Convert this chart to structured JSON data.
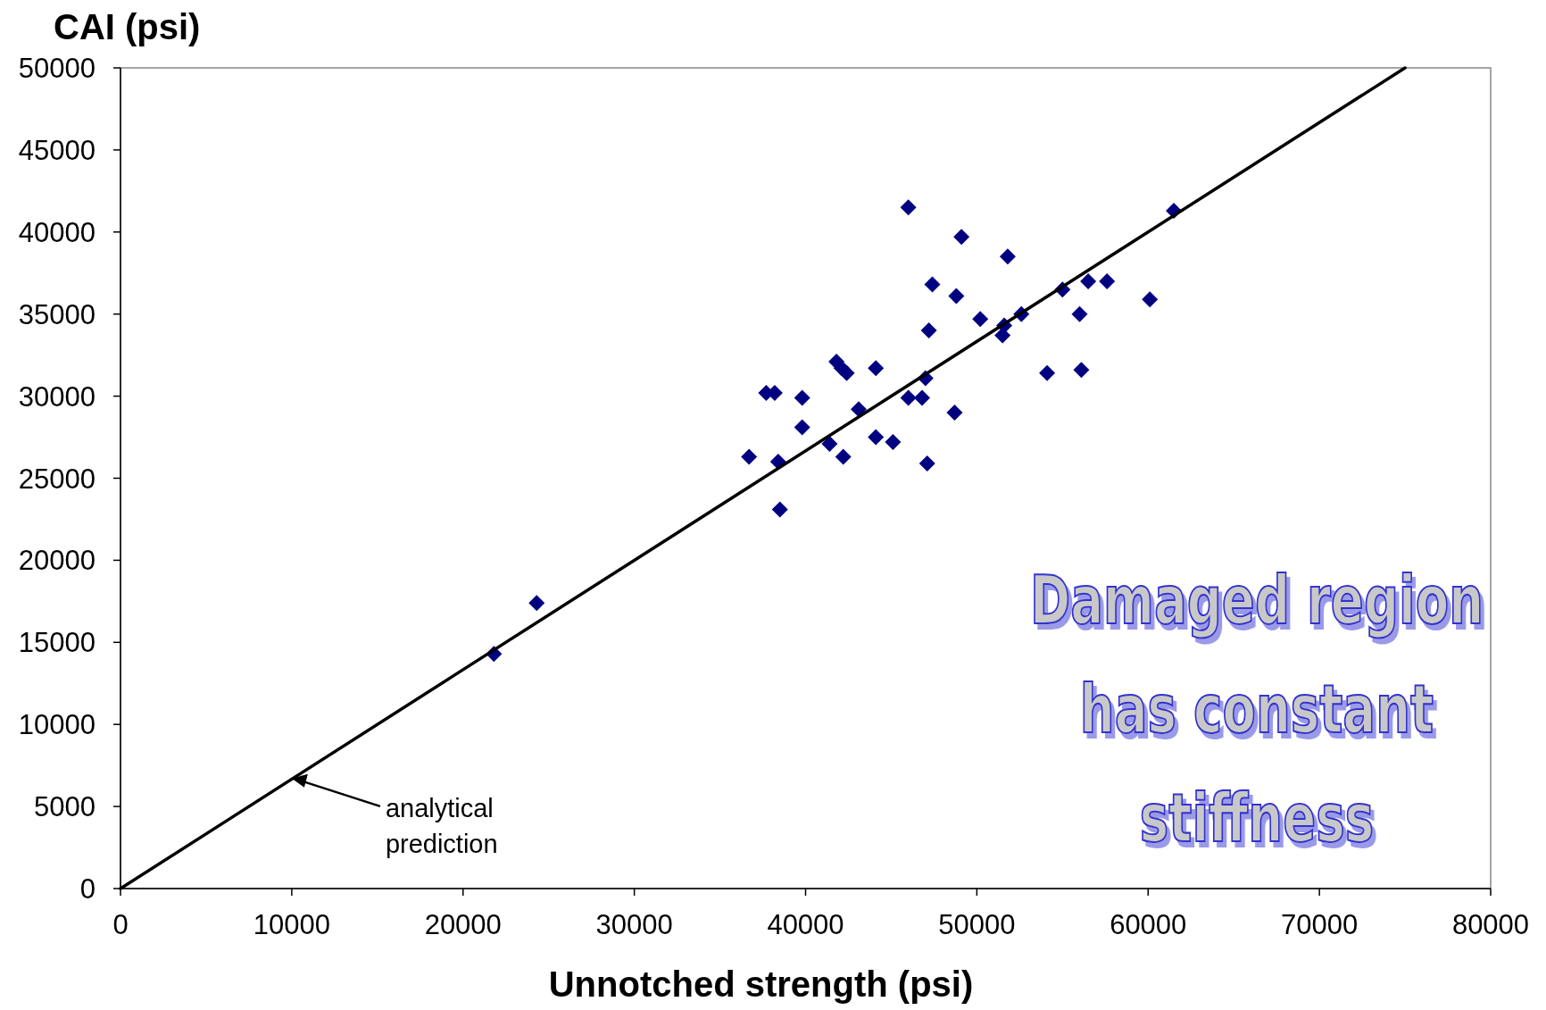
{
  "chart_data": {
    "type": "scatter",
    "xlabel": "Unnotched strength (psi)",
    "ylabel": "CAI (psi)",
    "xlim": [
      0,
      80000
    ],
    "ylim": [
      0,
      50000
    ],
    "xticks": [
      0,
      10000,
      20000,
      30000,
      40000,
      50000,
      60000,
      70000,
      80000
    ],
    "yticks": [
      0,
      5000,
      10000,
      15000,
      20000,
      25000,
      30000,
      35000,
      40000,
      45000,
      50000
    ],
    "grid": false,
    "series": [
      {
        "color": "#000080",
        "marker": "diamond",
        "x": [
          21800,
          24300,
          36700,
          37700,
          38200,
          38400,
          38500,
          39800,
          39800,
          41400,
          41800,
          42100,
          42400,
          42200,
          43100,
          44100,
          44100,
          45100,
          46000,
          46000,
          46800,
          47000,
          47200,
          47100,
          47400,
          48700,
          48800,
          49100,
          50200,
          51500,
          51600,
          51800,
          52600,
          54100,
          55000,
          56000,
          56100,
          56500,
          57600,
          60100,
          61500
        ],
        "values": [
          14300,
          17400,
          26300,
          30200,
          30200,
          26000,
          23100,
          29900,
          28100,
          27100,
          32100,
          31700,
          31400,
          26300,
          29200,
          31700,
          27500,
          27200,
          41500,
          29900,
          29900,
          31100,
          34000,
          25900,
          36800,
          29000,
          36100,
          39700,
          34700,
          33700,
          34300,
          38500,
          35000,
          31400,
          36500,
          35000,
          31600,
          37000,
          37000,
          35900,
          41300
        ]
      },
      {
        "type": "line",
        "color": "#000000",
        "marker": "none",
        "line_style": "solid",
        "x": [
          0,
          75000
        ],
        "values": [
          0,
          50000
        ]
      }
    ],
    "annotations": [
      "analytical prediction",
      "Damaged region has constant stiffness"
    ]
  }
}
